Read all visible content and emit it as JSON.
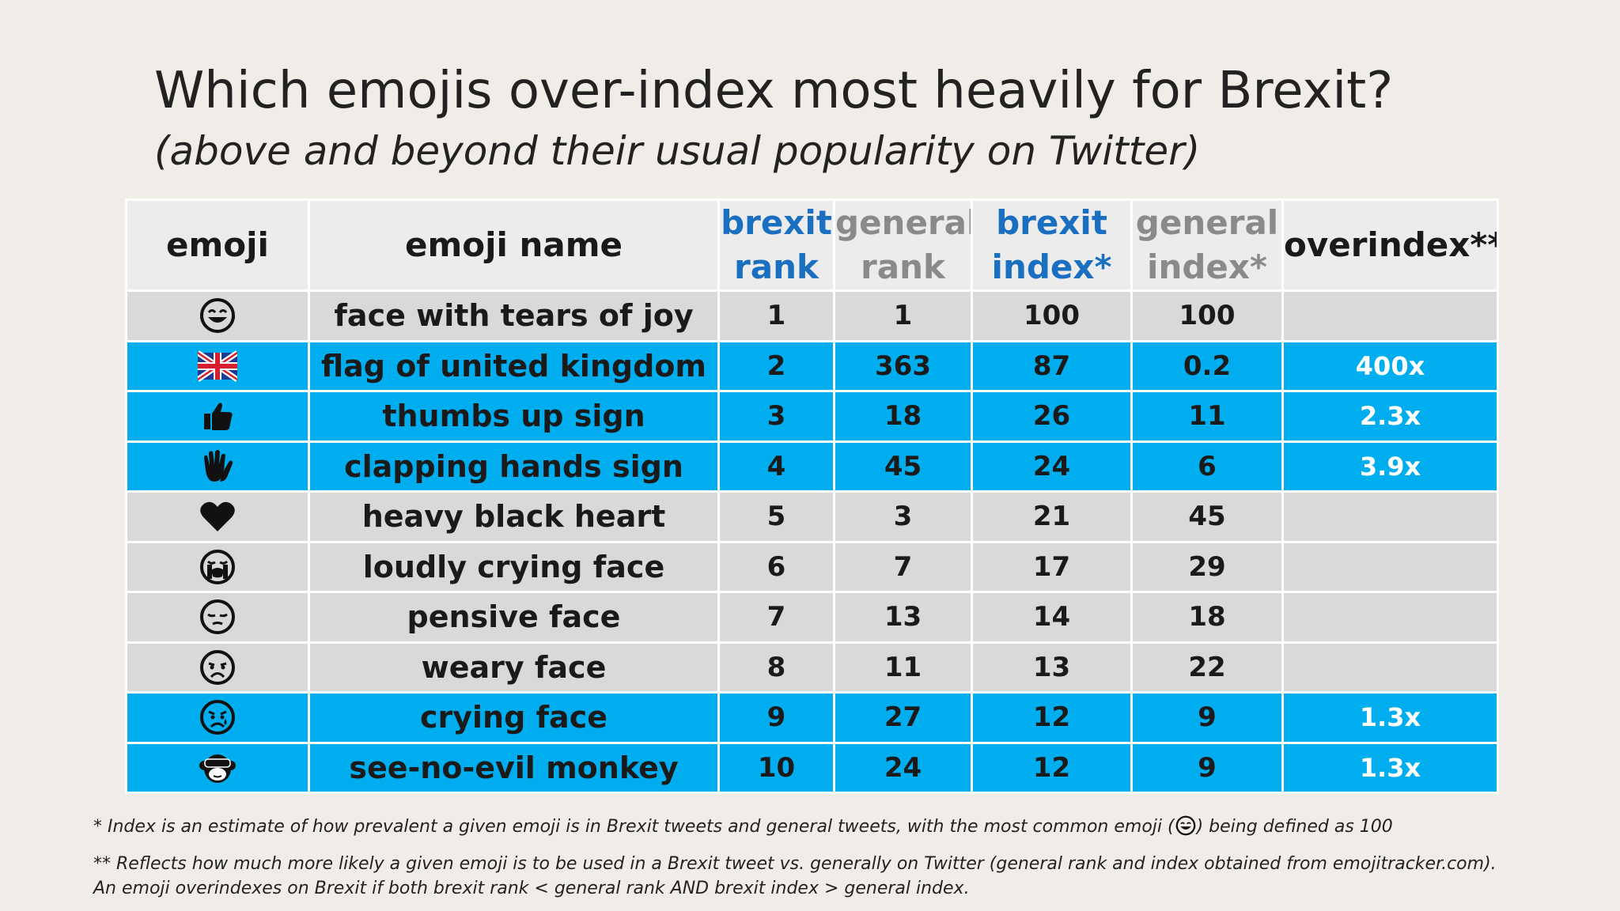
{
  "title": "Which emojis over-index most heavily for Brexit?",
  "subtitle": "(above and beyond their usual popularity on Twitter)",
  "colors": {
    "background": "#f0ede8",
    "header_bg": "#ececec",
    "row_grey": "#d9d9d9",
    "row_highlight": "#00aeef",
    "blue_text": "#1a6fc0",
    "grey_text": "#8a8a8a"
  },
  "chart_data": {
    "type": "table",
    "columns": [
      "emoji",
      "emoji name",
      "brexit rank",
      "general rank",
      "brexit index*",
      "general index*",
      "overindex**"
    ],
    "header": {
      "emoji": "emoji",
      "emoji_name": "emoji name",
      "brexit_rank": [
        "brexit",
        "rank"
      ],
      "general_rank": [
        "general",
        "rank"
      ],
      "brexit_index": [
        "brexit",
        "index*"
      ],
      "general_index": [
        "general",
        "index*"
      ],
      "overindex": "overindex**"
    },
    "rows": [
      {
        "emoji_icon": "face-with-tears-of-joy-icon",
        "name": "face with tears of joy",
        "brexit_rank": "1",
        "general_rank": "1",
        "brexit_index": "100",
        "general_index": "100",
        "overindex": "",
        "highlight": false
      },
      {
        "emoji_icon": "uk-flag-icon",
        "name": "flag of united kingdom",
        "brexit_rank": "2",
        "general_rank": "363",
        "brexit_index": "87",
        "general_index": "0.2",
        "overindex": "400x",
        "highlight": true
      },
      {
        "emoji_icon": "thumbs-up-icon",
        "name": "thumbs up sign",
        "brexit_rank": "3",
        "general_rank": "18",
        "brexit_index": "26",
        "general_index": "11",
        "overindex": "2.3x",
        "highlight": true
      },
      {
        "emoji_icon": "clapping-hands-icon",
        "name": "clapping hands sign",
        "brexit_rank": "4",
        "general_rank": "45",
        "brexit_index": "24",
        "general_index": "6",
        "overindex": "3.9x",
        "highlight": true
      },
      {
        "emoji_icon": "heavy-black-heart-icon",
        "name": "heavy black heart",
        "brexit_rank": "5",
        "general_rank": "3",
        "brexit_index": "21",
        "general_index": "45",
        "overindex": "",
        "highlight": false
      },
      {
        "emoji_icon": "loudly-crying-face-icon",
        "name": "loudly crying face",
        "brexit_rank": "6",
        "general_rank": "7",
        "brexit_index": "17",
        "general_index": "29",
        "overindex": "",
        "highlight": false
      },
      {
        "emoji_icon": "pensive-face-icon",
        "name": "pensive face",
        "brexit_rank": "7",
        "general_rank": "13",
        "brexit_index": "14",
        "general_index": "18",
        "overindex": "",
        "highlight": false
      },
      {
        "emoji_icon": "weary-face-icon",
        "name": "weary face",
        "brexit_rank": "8",
        "general_rank": "11",
        "brexit_index": "13",
        "general_index": "22",
        "overindex": "",
        "highlight": false
      },
      {
        "emoji_icon": "crying-face-icon",
        "name": "crying face",
        "brexit_rank": "9",
        "general_rank": "27",
        "brexit_index": "12",
        "general_index": "9",
        "overindex": "1.3x",
        "highlight": true
      },
      {
        "emoji_icon": "see-no-evil-monkey-icon",
        "name": "see-no-evil monkey",
        "brexit_rank": "10",
        "general_rank": "24",
        "brexit_index": "12",
        "general_index": "9",
        "overindex": "1.3x",
        "highlight": true
      }
    ]
  },
  "footnotes": {
    "note1_before": "* Index is an estimate of how prevalent a given emoji is in Brexit tweets and general tweets, with the most common emoji (",
    "note1_icon": "face-with-tears-of-joy-icon",
    "note1_after": ") being defined as 100",
    "note2": "** Reflects how much more likely a given emoji is to be used in a Brexit tweet vs. generally on Twitter (general rank and index obtained from emojitracker.com). An emoji overindexes on Brexit if both brexit rank < general rank AND brexit index > general index."
  }
}
